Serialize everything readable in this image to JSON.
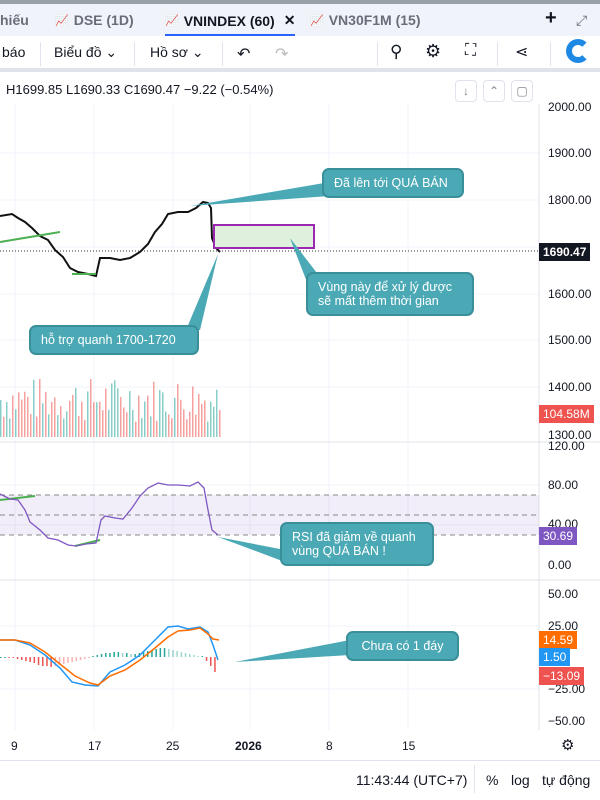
{
  "tabs": [
    {
      "label": "hiếu"
    },
    {
      "label": "DSE (1D)"
    },
    {
      "label": "VNINDEX (60)",
      "active": true
    },
    {
      "label": "VN30F1M (15)"
    }
  ],
  "toolbar": {
    "alert_partial": "báo",
    "chart_menu": "Biểu đồ",
    "profile_menu": "Hồ sơ"
  },
  "legend": {
    "text": "H1699.85 L1690.33 C1690.47 −9.22 (−0.54%)"
  },
  "price_axis": [
    "2000.00",
    "1900.00",
    "1800.00",
    "1600.00",
    "1500.00",
    "1400.00",
    "1300.00"
  ],
  "last_price": "1690.47",
  "volume_tag": "104.58M",
  "rsi_axis": [
    "120.00",
    "80.00",
    "40.00",
    "0.00"
  ],
  "rsi_value": "30.69",
  "macd_axis": [
    "50.00",
    "25.00",
    "−25.00",
    "−50.00"
  ],
  "macd_tags": {
    "signal": "14.59",
    "macd": "1.50",
    "hist": "−13.09"
  },
  "time_axis": [
    "9",
    "17",
    "25",
    "2026",
    "8",
    "15"
  ],
  "callouts": {
    "overbought": "Đã lên tới QUÁ BÁN",
    "zone": "Vùng này để xử lý được sẽ mất thêm thời gian",
    "support": "hỗ trợ quanh 1700-1720",
    "rsi": "RSI đã giảm về quanh vùng QUÁ BÁN !",
    "macd": "Chưa có 1 đáy"
  },
  "bottom": {
    "time": "11:43:44 (UTC+7)",
    "percent": "%",
    "log": "log",
    "auto": "tự động"
  },
  "colors": {
    "accent": "#2962ff",
    "callout": "#4aa9b5",
    "up": "#26a69a",
    "down": "#ef5350",
    "rsi": "#7e57c2",
    "macd": "#2196f3",
    "signal": "#ff6d00"
  }
}
